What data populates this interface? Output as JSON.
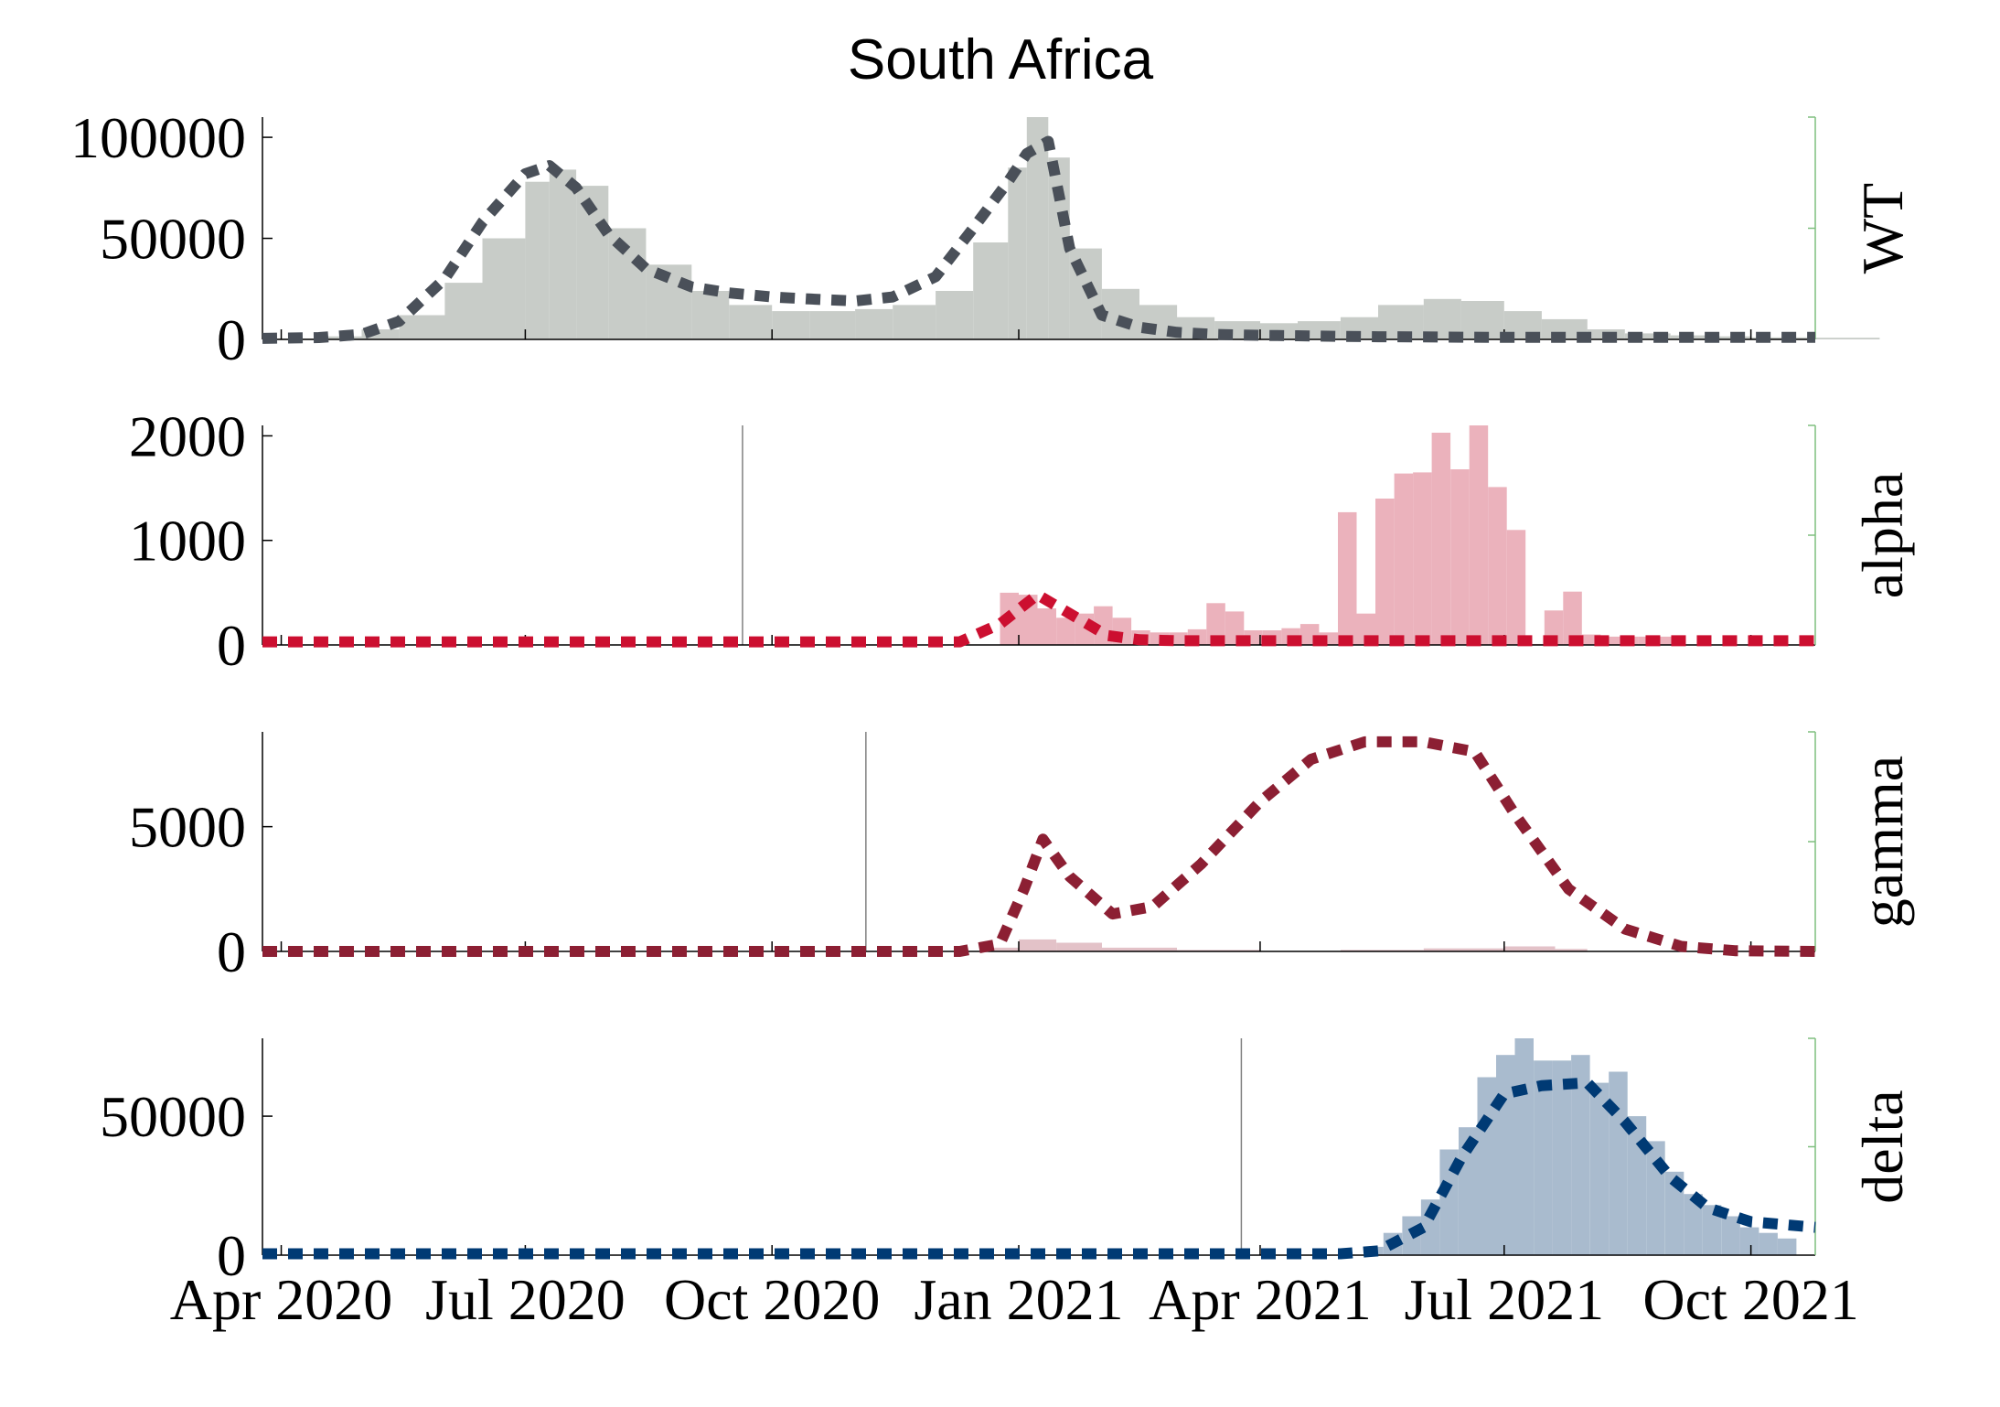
{
  "figure": {
    "title": "South Africa"
  },
  "colors": {
    "axis": "#000000",
    "right_axis": "#7fbf7f",
    "marker_line": "#808080"
  },
  "chart_data": [
    {
      "type": "area",
      "panel": "WT",
      "ylabel": "WT",
      "ylim": [
        0,
        110000
      ],
      "yticks": [
        0,
        50000,
        100000
      ],
      "ytick_labels": [
        "0",
        "50000",
        "100000"
      ],
      "xlim": [
        "2020-03-25",
        "2021-10-25"
      ],
      "xticks": [
        "2020-04-01",
        "2020-07-01",
        "2020-10-01",
        "2021-01-01",
        "2021-04-01",
        "2021-07-01",
        "2021-10-01"
      ],
      "xtick_labels": [
        "Apr 2020",
        "Jul 2020",
        "Oct 2020",
        "Jan 2021",
        "Apr 2021",
        "Jul 2021",
        "Oct 2021"
      ],
      "bar_color": "#c8ccc8",
      "line_color": "#4a5059",
      "marker_date": null,
      "bars": {
        "x": [
          "2020-03-25",
          "2020-04-15",
          "2020-05-01",
          "2020-05-15",
          "2020-06-01",
          "2020-06-15",
          "2020-07-01",
          "2020-07-10",
          "2020-07-20",
          "2020-08-01",
          "2020-08-15",
          "2020-09-01",
          "2020-09-15",
          "2020-10-01",
          "2020-10-15",
          "2020-11-01",
          "2020-11-15",
          "2020-12-01",
          "2020-12-15",
          "2020-12-28",
          "2021-01-04",
          "2021-01-12",
          "2021-01-20",
          "2021-02-01",
          "2021-02-15",
          "2021-03-01",
          "2021-03-15",
          "2021-04-01",
          "2021-04-15",
          "2021-05-01",
          "2021-05-15",
          "2021-06-01",
          "2021-06-15",
          "2021-07-01",
          "2021-07-15",
          "2021-08-01",
          "2021-08-15",
          "2021-09-01",
          "2021-09-15",
          "2021-10-01",
          "2021-10-25"
        ],
        "values": [
          500,
          1500,
          5000,
          12000,
          28000,
          50000,
          78000,
          84000,
          76000,
          55000,
          37000,
          24000,
          17000,
          14000,
          14000,
          15000,
          17000,
          24000,
          48000,
          85000,
          110000,
          90000,
          45000,
          25000,
          17000,
          11000,
          9000,
          8000,
          9000,
          11000,
          17000,
          20000,
          19000,
          14000,
          10000,
          5000,
          3000,
          2000,
          1500,
          1000,
          800
        ]
      },
      "series": [
        {
          "x": [
            "2020-03-25",
            "2020-04-15",
            "2020-05-01",
            "2020-05-15",
            "2020-06-01",
            "2020-06-15",
            "2020-07-01",
            "2020-07-10",
            "2020-07-20",
            "2020-08-01",
            "2020-08-15",
            "2020-09-01",
            "2020-09-15",
            "2020-10-01",
            "2020-10-15",
            "2020-11-01",
            "2020-11-15",
            "2020-12-01",
            "2020-12-15",
            "2020-12-28",
            "2021-01-04",
            "2021-01-12",
            "2021-01-20",
            "2021-02-01",
            "2021-02-15",
            "2021-03-01",
            "2021-03-15",
            "2021-04-01",
            "2021-04-15",
            "2021-05-01",
            "2021-05-15",
            "2021-06-01",
            "2021-06-15",
            "2021-07-01",
            "2021-07-15",
            "2021-08-01",
            "2021-08-15",
            "2021-09-01",
            "2021-09-15",
            "2021-10-01",
            "2021-10-25"
          ],
          "values": [
            500,
            900,
            2500,
            9000,
            30000,
            58000,
            82000,
            86000,
            75000,
            52000,
            35000,
            26000,
            23000,
            21000,
            20000,
            19000,
            21000,
            31000,
            55000,
            78000,
            92000,
            98000,
            45000,
            12000,
            6000,
            3500,
            2500,
            2000,
            1800,
            1500,
            1300,
            1200,
            1100,
            1000,
            1000,
            1000,
            1000,
            1000,
            1000,
            1000,
            1000
          ]
        }
      ]
    },
    {
      "type": "area",
      "panel": "alpha",
      "ylabel": "alpha",
      "ylim": [
        0,
        2100
      ],
      "yticks": [
        0,
        1000,
        2000
      ],
      "ytick_labels": [
        "0",
        "1000",
        "2000"
      ],
      "xlim": [
        "2020-03-25",
        "2021-10-25"
      ],
      "xticks": [
        "2020-04-01",
        "2020-07-01",
        "2020-10-01",
        "2021-01-01",
        "2021-04-01",
        "2021-07-01",
        "2021-10-01"
      ],
      "bar_color": "#ebb2bc",
      "line_color": "#cc0f30",
      "marker_date": "2020-09-20",
      "bars": {
        "x": [
          "2020-12-25",
          "2021-01-01",
          "2021-01-08",
          "2021-01-15",
          "2021-01-22",
          "2021-01-29",
          "2021-02-05",
          "2021-02-12",
          "2021-02-19",
          "2021-02-26",
          "2021-03-05",
          "2021-03-12",
          "2021-03-19",
          "2021-03-26",
          "2021-04-02",
          "2021-04-09",
          "2021-04-16",
          "2021-04-23",
          "2021-04-30",
          "2021-05-07",
          "2021-05-14",
          "2021-05-21",
          "2021-05-28",
          "2021-06-04",
          "2021-06-11",
          "2021-06-18",
          "2021-06-25",
          "2021-07-02",
          "2021-07-09",
          "2021-07-16",
          "2021-07-23",
          "2021-07-30",
          "2021-08-06",
          "2021-08-13",
          "2021-08-20",
          "2021-08-27"
        ],
        "values": [
          500,
          480,
          350,
          260,
          300,
          370,
          260,
          140,
          120,
          120,
          150,
          400,
          320,
          140,
          140,
          160,
          200,
          120,
          1270,
          300,
          1400,
          1640,
          1650,
          2030,
          1680,
          2100,
          1510,
          1100,
          10,
          330,
          510,
          100,
          80,
          80,
          80,
          80
        ]
      },
      "series": [
        {
          "x": [
            "2020-03-25",
            "2020-12-10",
            "2020-12-25",
            "2021-01-08",
            "2021-01-20",
            "2021-02-03",
            "2021-02-15",
            "2021-03-01",
            "2021-04-01",
            "2021-05-01",
            "2021-06-01",
            "2021-07-01",
            "2021-08-01",
            "2021-09-01",
            "2021-10-25"
          ],
          "values": [
            30,
            30,
            200,
            480,
            300,
            90,
            50,
            40,
            40,
            40,
            40,
            40,
            40,
            40,
            40
          ]
        }
      ]
    },
    {
      "type": "area",
      "panel": "gamma",
      "ylabel": "gamma",
      "ylim": [
        0,
        8800
      ],
      "yticks": [
        0,
        5000
      ],
      "ytick_labels": [
        "0",
        "5000"
      ],
      "xlim": [
        "2020-03-25",
        "2021-10-25"
      ],
      "xticks": [
        "2020-04-01",
        "2020-07-01",
        "2020-10-01",
        "2021-01-01",
        "2021-04-01",
        "2021-07-01",
        "2021-10-01"
      ],
      "bar_color": "#e3c2c8",
      "line_color": "#8c1f33",
      "marker_date": "2020-11-05",
      "bars": {
        "x": [
          "2020-12-20",
          "2021-01-01",
          "2021-01-15",
          "2021-02-01",
          "2021-03-01",
          "2021-04-01",
          "2021-05-01",
          "2021-06-01",
          "2021-07-01",
          "2021-07-20",
          "2021-08-01"
        ],
        "values": [
          150,
          480,
          350,
          150,
          60,
          20,
          60,
          120,
          200,
          100,
          20
        ]
      },
      "series": [
        {
          "x": [
            "2020-03-25",
            "2020-12-10",
            "2020-12-25",
            "2021-01-03",
            "2021-01-10",
            "2021-01-20",
            "2021-02-05",
            "2021-02-20",
            "2021-03-10",
            "2021-04-01",
            "2021-04-20",
            "2021-05-10",
            "2021-06-01",
            "2021-06-20",
            "2021-07-05",
            "2021-07-25",
            "2021-08-15",
            "2021-09-05",
            "2021-09-25",
            "2021-10-25"
          ],
          "values": [
            0,
            0,
            300,
            2500,
            4500,
            3000,
            1500,
            1800,
            3500,
            6000,
            7700,
            8400,
            8400,
            8000,
            5500,
            2500,
            900,
            200,
            30,
            0
          ]
        }
      ]
    },
    {
      "type": "area",
      "panel": "delta",
      "ylabel": "delta",
      "ylim": [
        0,
        78000
      ],
      "yticks": [
        0,
        50000
      ],
      "ytick_labels": [
        "0",
        "50000"
      ],
      "xlim": [
        "2020-03-25",
        "2021-10-25"
      ],
      "xticks": [
        "2020-04-01",
        "2020-07-01",
        "2020-10-01",
        "2021-01-01",
        "2021-04-01",
        "2021-07-01",
        "2021-10-01"
      ],
      "xtick_labels": [
        "Apr 2020",
        "Jul 2020",
        "Oct 2020",
        "Jan 2021",
        "Apr 2021",
        "Jul 2021",
        "Oct 2021"
      ],
      "bar_color": "#a9bbce",
      "line_color": "#003a74",
      "marker_date": "2021-03-25",
      "bars": {
        "x": [
          "2021-05-10",
          "2021-05-17",
          "2021-05-24",
          "2021-05-31",
          "2021-06-07",
          "2021-06-14",
          "2021-06-21",
          "2021-06-28",
          "2021-07-05",
          "2021-07-12",
          "2021-07-19",
          "2021-07-26",
          "2021-08-02",
          "2021-08-09",
          "2021-08-16",
          "2021-08-23",
          "2021-08-30",
          "2021-09-06",
          "2021-09-13",
          "2021-09-20",
          "2021-09-27",
          "2021-10-04",
          "2021-10-11"
        ],
        "values": [
          3000,
          8000,
          14000,
          20000,
          38000,
          46000,
          64000,
          72000,
          78000,
          70000,
          70000,
          72000,
          62000,
          66000,
          50000,
          41000,
          30000,
          22000,
          18000,
          14000,
          10000,
          8000,
          6000
        ]
      },
      "series": [
        {
          "x": [
            "2020-03-25",
            "2021-05-01",
            "2021-05-15",
            "2021-06-01",
            "2021-06-15",
            "2021-07-01",
            "2021-07-15",
            "2021-08-01",
            "2021-08-15",
            "2021-09-01",
            "2021-09-15",
            "2021-10-01",
            "2021-10-25"
          ],
          "values": [
            500,
            500,
            1500,
            10000,
            35000,
            58000,
            61000,
            62000,
            48000,
            28000,
            17000,
            12000,
            10000
          ]
        }
      ]
    }
  ]
}
